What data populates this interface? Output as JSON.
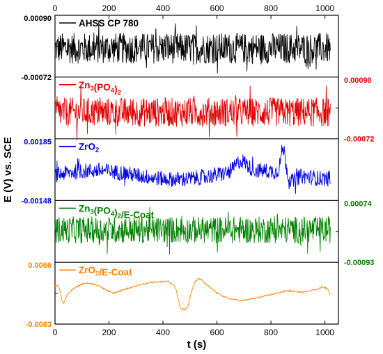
{
  "chart_data": {
    "type": "line",
    "layout": "stacked panels sharing x axis",
    "xlabel": "t (s)",
    "ylabel": "E (V) vs. SCE",
    "xlim": [
      0,
      1050
    ],
    "x_ticks": [
      0,
      200,
      400,
      600,
      800,
      1000
    ],
    "grid": false,
    "legend_placement": "top-left of each panel",
    "panels": [
      {
        "legend": [
          "AHSS CP 780"
        ],
        "color": "#000000",
        "y_labels": [
          "0.00090",
          "-0.00072"
        ],
        "label_side": "left",
        "ylim": [
          -0.00072,
          0.0009
        ],
        "x_range": [
          0,
          1020
        ],
        "baseline": 3e-05,
        "noise_amplitude": 0.00058,
        "features": []
      },
      {
        "legend": [
          "Zn",
          "3",
          "(PO",
          "4",
          ")",
          "2"
        ],
        "color": "#e00000",
        "y_labels": [
          "0.00090",
          "-0.00072"
        ],
        "label_side": "right",
        "ylim": [
          -0.00072,
          0.0009
        ],
        "x_range": [
          0,
          1020
        ],
        "baseline": -3e-05,
        "noise_amplitude": 0.00055,
        "features": []
      },
      {
        "legend": [
          "ZrO",
          "2"
        ],
        "color": "#0000e0",
        "y_labels": [
          "0.00185",
          "-0.00148"
        ],
        "label_side": "left",
        "ylim": [
          -0.00148,
          0.00185
        ],
        "x_range": [
          0,
          1020
        ],
        "baseline": -0.00012,
        "noise_amplitude": 0.0006,
        "features": [
          {
            "x": 690,
            "dy": 0.0006,
            "width": 30
          },
          {
            "x": 845,
            "dy": 0.0014,
            "width": 12
          },
          {
            "x": 880,
            "dy": -0.0004,
            "width": 20
          }
        ]
      },
      {
        "legend": [
          "Zn",
          "3",
          "(PO",
          "4",
          ")",
          "2",
          "/E-Coat"
        ],
        "color": "#008000",
        "y_labels": [
          "0.00074",
          "-0.00093"
        ],
        "label_side": "right",
        "ylim": [
          -0.00093,
          0.00074
        ],
        "x_range": [
          0,
          1020
        ],
        "baseline": -5e-05,
        "noise_amplitude": 0.00052,
        "features": []
      },
      {
        "legend": [
          "ZrO",
          "2",
          "/E-Coat"
        ],
        "color": "#ff8000",
        "y_labels": [
          "0.0066",
          "-0.0083"
        ],
        "label_side": "left",
        "ylim": [
          -0.0083,
          0.0066
        ],
        "points": [
          [
            0,
            0.0012
          ],
          [
            15,
            0.0008
          ],
          [
            25,
            -0.0025
          ],
          [
            32,
            -0.0035
          ],
          [
            45,
            -0.0012
          ],
          [
            70,
            0.0005
          ],
          [
            110,
            0.0018
          ],
          [
            150,
            0.0015
          ],
          [
            185,
            0.0002
          ],
          [
            215,
            -0.0008
          ],
          [
            260,
            0.0002
          ],
          [
            320,
            0.0014
          ],
          [
            360,
            0.002
          ],
          [
            420,
            0.0022
          ],
          [
            440,
            0.0012
          ],
          [
            448,
            0.0004
          ],
          [
            455,
            -0.0018
          ],
          [
            465,
            -0.0048
          ],
          [
            480,
            -0.005
          ],
          [
            492,
            -0.0045
          ],
          [
            505,
            -0.0005
          ],
          [
            520,
            0.0022
          ],
          [
            535,
            0.003
          ],
          [
            560,
            0.0014
          ],
          [
            600,
            -0.0008
          ],
          [
            640,
            -0.0022
          ],
          [
            690,
            -0.0028
          ],
          [
            740,
            -0.0022
          ],
          [
            800,
            -0.0012
          ],
          [
            860,
            -0.0002
          ],
          [
            920,
            -0.0006
          ],
          [
            970,
            0.0002
          ],
          [
            995,
            0.0008
          ],
          [
            1010,
            0.0002
          ],
          [
            1020,
            -0.0012
          ]
        ],
        "jitter": 0.0004
      }
    ]
  }
}
